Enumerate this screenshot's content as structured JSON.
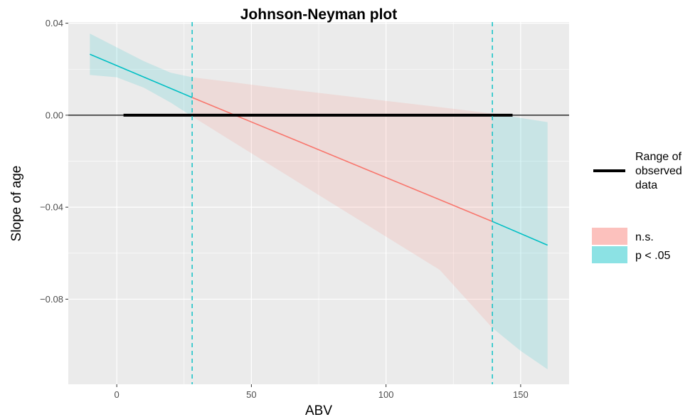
{
  "chart_data": {
    "type": "line",
    "title": "Johnson-Neyman plot",
    "xlabel": "ABV",
    "ylabel": "Slope of age",
    "xlim": [
      -18,
      168
    ],
    "ylim": [
      -0.117,
      0.0405
    ],
    "x_ticks": [
      0,
      50,
      100,
      150
    ],
    "x_tick_labels": [
      "0",
      "50",
      "100",
      "150"
    ],
    "y_ticks": [
      -0.08,
      -0.04,
      0.0,
      0.04
    ],
    "y_tick_labels": [
      "−0.08",
      "−0.04",
      "0.00",
      "0.04"
    ],
    "grid": true,
    "background": "#ebebeb",
    "jn_bounds": [
      28,
      139.5
    ],
    "zero_line": 0,
    "observed_range": [
      2.5,
      147
    ],
    "line": {
      "x": [
        -10,
        28,
        139.5,
        160
      ],
      "y": [
        0.0265,
        0.0077,
        -0.0462,
        -0.0565
      ]
    },
    "ribbon_lower": {
      "x": [
        -10,
        0,
        10,
        20,
        28,
        40,
        60,
        80,
        100,
        120,
        139.5,
        150,
        160
      ],
      "y": [
        0.0175,
        0.0165,
        0.012,
        0.0055,
        -0.0005,
        -0.0093,
        -0.0238,
        -0.0383,
        -0.0528,
        -0.0673,
        -0.0925,
        -0.1025,
        -0.1105
      ]
    },
    "ribbon_upper": {
      "x": [
        -10,
        0,
        10,
        20,
        28,
        40,
        60,
        80,
        100,
        120,
        139.5,
        150,
        160
      ],
      "y": [
        0.0355,
        0.0295,
        0.0235,
        0.0185,
        0.0165,
        0.0148,
        0.0118,
        0.009,
        0.0062,
        0.0035,
        0.0007,
        -0.0012,
        -0.003
      ]
    },
    "regions": [
      {
        "name": "p < .05",
        "x": [
          -10,
          28
        ],
        "color": "#00bfc4"
      },
      {
        "name": "n.s.",
        "x": [
          28,
          139.5
        ],
        "color": "#f8766d"
      },
      {
        "name": "p < .05",
        "x": [
          139.5,
          160
        ],
        "color": "#00bfc4"
      }
    ],
    "legend": {
      "position": "right",
      "range_label_lines": [
        "Range of",
        "observed",
        "data"
      ],
      "items": [
        {
          "label": "n.s.",
          "color": "#f8766d"
        },
        {
          "label": "p < .05",
          "color": "#00bfc4"
        }
      ]
    }
  }
}
